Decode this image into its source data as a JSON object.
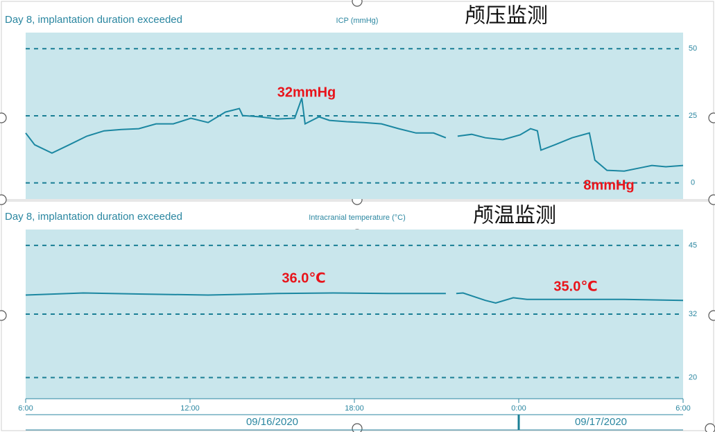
{
  "chart_data": [
    {
      "type": "line",
      "status": "Day 8, implantation duration exceeded",
      "title": "ICP (mmHg)",
      "overlay_title": "颅压监测",
      "annotations": [
        "32mmHg",
        "8mmHg"
      ],
      "x": [
        6.0,
        6.33,
        6.96,
        7.59,
        8.23,
        8.86,
        9.49,
        10.13,
        10.76,
        11.39,
        12.03,
        12.66,
        13.29,
        13.8,
        13.92,
        14.56,
        15.19,
        15.82,
        16.08,
        16.2,
        16.71,
        17.09,
        17.72,
        18.35,
        18.99,
        19.62,
        20.25,
        20.89,
        21.34,
        21.55,
        21.77,
        22.28,
        22.78,
        23.42,
        24.05,
        24.43,
        24.68,
        24.81,
        25.32,
        25.95,
        26.58,
        26.78,
        27.22,
        27.85,
        28.48,
        28.86,
        29.37,
        30.0
      ],
      "series": [
        {
          "color": "#1b87a1",
          "values": [
            18.6,
            14.2,
            11.1,
            14.2,
            17.4,
            19.4,
            19.9,
            20.2,
            22.0,
            22.0,
            24.1,
            22.5,
            26.4,
            27.7,
            25.1,
            24.6,
            23.8,
            24.1,
            31.6,
            22.0,
            24.6,
            23.3,
            22.8,
            22.5,
            22.0,
            20.2,
            18.6,
            18.6,
            16.8,
            null,
            17.4,
            18.1,
            16.8,
            16.1,
            17.9,
            20.2,
            19.4,
            12.2,
            14.2,
            16.8,
            18.6,
            8.5,
            4.7,
            4.4,
            5.7,
            6.5,
            6.0,
            6.5
          ]
        }
      ],
      "xlim": [
        6,
        30
      ],
      "ylim": [
        -6,
        56
      ],
      "yticks": [
        0,
        25,
        50
      ],
      "grid": true
    },
    {
      "type": "line",
      "status": "Day 8, implantation duration exceeded",
      "title": "Intracranial temperature (°C)",
      "overlay_title": "颅温监测",
      "annotations": [
        "36.0℃",
        "35.0℃"
      ],
      "x": [
        6.0,
        8.1,
        10.13,
        12.66,
        15.19,
        17.22,
        19.24,
        21.34,
        21.55,
        21.72,
        21.97,
        22.78,
        23.16,
        23.8,
        24.3,
        26.58,
        27.85,
        30.0
      ],
      "series": [
        {
          "color": "#1b87a1",
          "values": [
            35.6,
            36.0,
            35.8,
            35.6,
            35.9,
            36.0,
            35.9,
            35.9,
            null,
            35.9,
            36.0,
            34.6,
            34.1,
            35.1,
            34.8,
            34.8,
            34.8,
            34.6
          ]
        }
      ],
      "xlim": [
        6,
        30
      ],
      "ylim": [
        16,
        48
      ],
      "yticks": [
        20,
        32,
        45
      ],
      "grid": true,
      "xticks": [
        {
          "value": 6,
          "label": "6:00"
        },
        {
          "value": 12,
          "label": "12:00"
        },
        {
          "value": 18,
          "label": "18:00"
        },
        {
          "value": 24,
          "label": "0:00"
        },
        {
          "value": 30,
          "label": "6:00"
        }
      ],
      "day_break": 24,
      "date_labels": [
        "09/16/2020",
        "09/17/2020"
      ]
    }
  ]
}
